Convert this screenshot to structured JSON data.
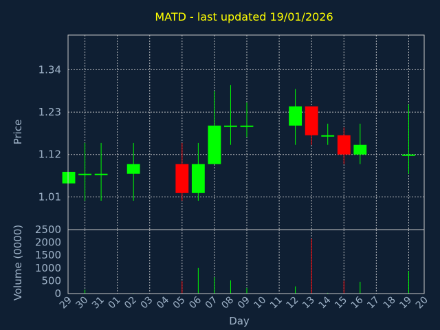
{
  "chart_data": {
    "type": "candlestick",
    "title": "MATD - last updated 19/01/2026",
    "xlabel": "Day",
    "price_ylabel": "Price",
    "volume_ylabel": "Volume (0000)",
    "x_ticks": [
      "29",
      "30",
      "31",
      "01",
      "02",
      "03",
      "04",
      "05",
      "06",
      "07",
      "08",
      "09",
      "10",
      "11",
      "12",
      "13",
      "14",
      "15",
      "16",
      "17",
      "18",
      "19",
      "20"
    ],
    "price_ticks": [
      "1.01",
      "1.12",
      "1.23",
      "1.34"
    ],
    "price_tick_values": [
      1.01,
      1.12,
      1.23,
      1.34
    ],
    "price_ylim": [
      0.925,
      1.43
    ],
    "volume_ticks": [
      "0",
      "500",
      "1000",
      "1500",
      "2000",
      "2500"
    ],
    "volume_tick_values": [
      0,
      500,
      1000,
      1500,
      2000,
      2500
    ],
    "volume_ylim": [
      0,
      2500
    ],
    "grid": true,
    "colors": {
      "up": "#00ff00",
      "down": "#ff0000"
    },
    "candles": [
      {
        "x": 0,
        "open": 1.045,
        "close": 1.075,
        "high": 1.075,
        "low": 1.045,
        "volume": 0
      },
      {
        "x": 1,
        "open": 1.07,
        "close": 1.07,
        "high": 1.15,
        "low": 1.0,
        "volume": 150
      },
      {
        "x": 2,
        "open": 1.07,
        "close": 1.07,
        "high": 1.15,
        "low": 1.0,
        "volume": 0
      },
      {
        "x": 4,
        "open": 1.07,
        "close": 1.095,
        "high": 1.15,
        "low": 1.0,
        "volume": 20
      },
      {
        "x": 7,
        "open": 1.095,
        "close": 1.02,
        "high": 1.15,
        "low": 1.0,
        "volume": 480
      },
      {
        "x": 8,
        "open": 1.02,
        "close": 1.095,
        "high": 1.15,
        "low": 1.0,
        "volume": 1000
      },
      {
        "x": 9,
        "open": 1.095,
        "close": 1.195,
        "high": 1.285,
        "low": 1.095,
        "volume": 640
      },
      {
        "x": 10,
        "open": 1.195,
        "close": 1.195,
        "high": 1.3,
        "low": 1.145,
        "volume": 520
      },
      {
        "x": 11,
        "open": 1.195,
        "close": 1.195,
        "high": 1.255,
        "low": 1.165,
        "volume": 220
      },
      {
        "x": 14,
        "open": 1.195,
        "close": 1.245,
        "high": 1.29,
        "low": 1.145,
        "volume": 280
      },
      {
        "x": 15,
        "open": 1.245,
        "close": 1.17,
        "high": 1.245,
        "low": 1.145,
        "volume": 2150
      },
      {
        "x": 16,
        "open": 1.17,
        "close": 1.17,
        "high": 1.2,
        "low": 1.145,
        "volume": 30
      },
      {
        "x": 17,
        "open": 1.17,
        "close": 1.12,
        "high": 1.19,
        "low": 1.095,
        "volume": 500
      },
      {
        "x": 18,
        "open": 1.12,
        "close": 1.145,
        "high": 1.2,
        "low": 1.095,
        "volume": 460
      },
      {
        "x": 21,
        "open": 1.12,
        "close": 1.12,
        "high": 1.25,
        "low": 1.07,
        "volume": 880
      }
    ]
  }
}
